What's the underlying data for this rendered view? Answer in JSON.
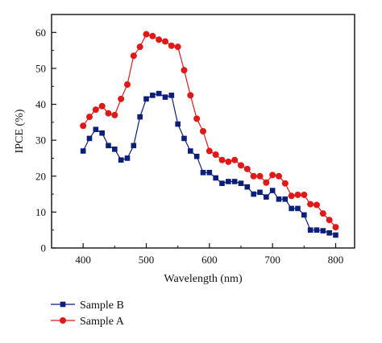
{
  "chart_data": {
    "type": "line",
    "title": "",
    "xlabel": "Wavelength (nm)",
    "ylabel": "IPCE (%)",
    "xlim": [
      350,
      830
    ],
    "ylim": [
      0,
      65
    ],
    "xticks": [
      400,
      500,
      600,
      700,
      800
    ],
    "yticks": [
      0,
      10,
      20,
      30,
      40,
      50,
      60
    ],
    "grid": false,
    "legend_position": "below",
    "series": [
      {
        "name": "Sample B",
        "color": "#0b1f7a",
        "marker": "square",
        "x": [
          400,
          410,
          420,
          430,
          440,
          450,
          460,
          470,
          480,
          490,
          500,
          510,
          520,
          530,
          540,
          550,
          560,
          570,
          580,
          590,
          600,
          610,
          620,
          630,
          640,
          650,
          660,
          670,
          680,
          690,
          700,
          710,
          720,
          730,
          740,
          750,
          760,
          770,
          780,
          790,
          800
        ],
        "y": [
          27,
          30.5,
          33,
          32,
          28.5,
          27.5,
          24.5,
          25,
          28.5,
          36.5,
          41.5,
          42.5,
          43,
          42,
          42.5,
          34.5,
          30.5,
          27,
          25.5,
          21,
          21,
          19.5,
          18,
          18.5,
          18.5,
          18,
          17,
          15,
          15.5,
          14.2,
          16,
          13.6,
          13.6,
          11,
          11,
          9.2,
          5,
          5,
          4.8,
          4.2,
          3.6
        ]
      },
      {
        "name": "Sample A",
        "color": "#e01818",
        "marker": "circle",
        "x": [
          400,
          410,
          420,
          430,
          440,
          450,
          460,
          470,
          480,
          490,
          500,
          510,
          520,
          530,
          540,
          550,
          560,
          570,
          580,
          590,
          600,
          610,
          620,
          630,
          640,
          650,
          660,
          670,
          680,
          690,
          700,
          710,
          720,
          730,
          740,
          750,
          760,
          770,
          780,
          790,
          800
        ],
        "y": [
          34,
          36.5,
          38.5,
          39.5,
          37.5,
          37,
          41.5,
          45.5,
          53.5,
          56,
          59.5,
          59,
          58,
          57.5,
          56.3,
          56,
          49.5,
          42.5,
          36,
          32.5,
          27,
          26,
          24.5,
          24,
          24.5,
          23,
          22,
          20,
          20,
          18.2,
          20.3,
          20,
          18,
          14.5,
          14.8,
          14.8,
          12.2,
          12,
          9.6,
          7.8,
          5.8
        ]
      }
    ]
  }
}
